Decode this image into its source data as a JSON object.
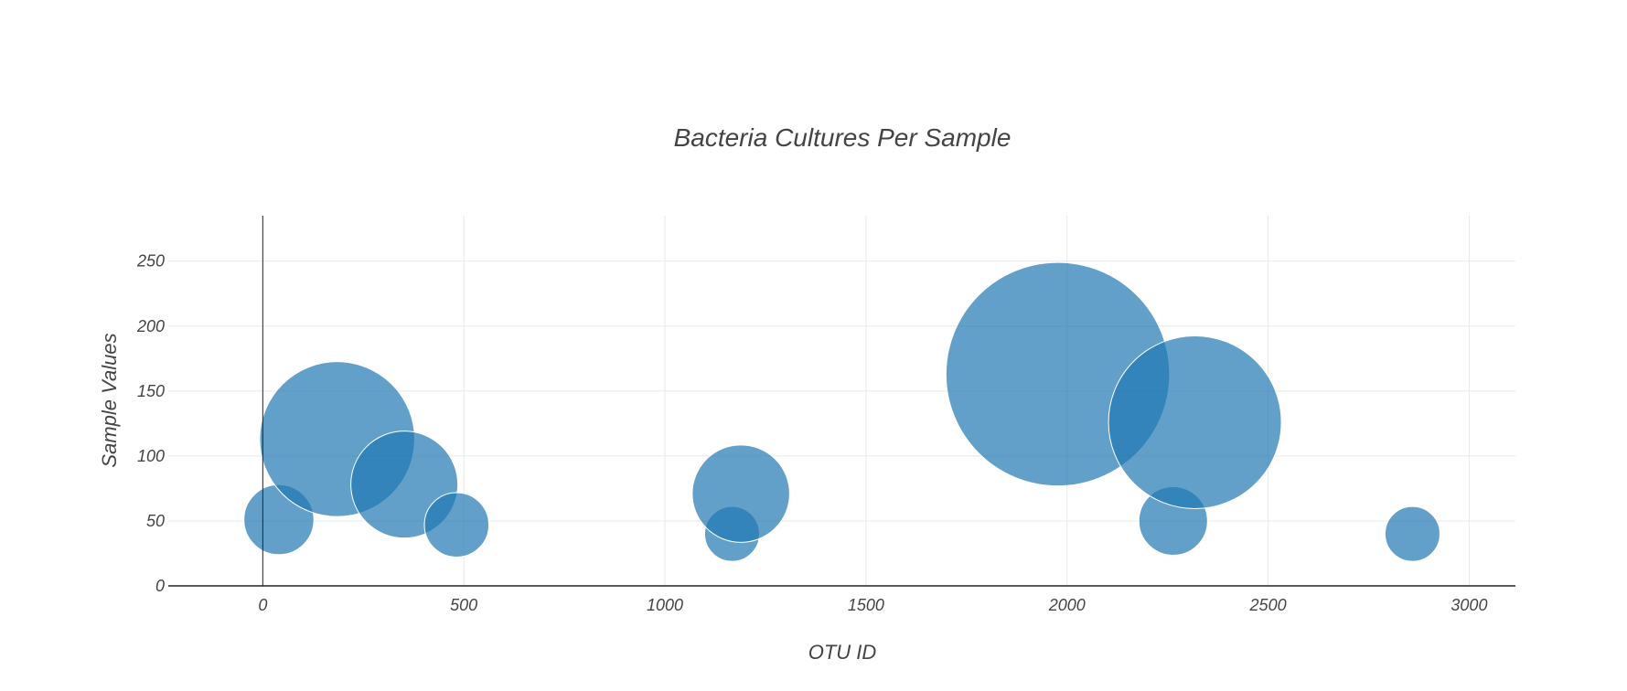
{
  "chart_data": {
    "type": "scatter",
    "title": "Bacteria Cultures Per Sample",
    "xlabel": "OTU ID",
    "ylabel": "Sample Values",
    "xlim": [
      -235,
      3115
    ],
    "ylim": [
      0,
      285
    ],
    "x_ticks": [
      0,
      500,
      1000,
      1500,
      2000,
      2500,
      3000
    ],
    "y_ticks": [
      0,
      50,
      100,
      150,
      200,
      250
    ],
    "grid": true,
    "marker_color": "#1f77b4",
    "marker_opacity": 0.7,
    "series": [
      {
        "x": [
          40,
          185,
          352,
          482,
          1167,
          1189,
          1977,
          2264,
          2318,
          2859
        ],
        "y": [
          51,
          113,
          78,
          47,
          40,
          71,
          163,
          50,
          126,
          40
        ],
        "size": [
          51,
          113,
          78,
          47,
          40,
          71,
          163,
          50,
          126,
          40
        ]
      }
    ]
  }
}
